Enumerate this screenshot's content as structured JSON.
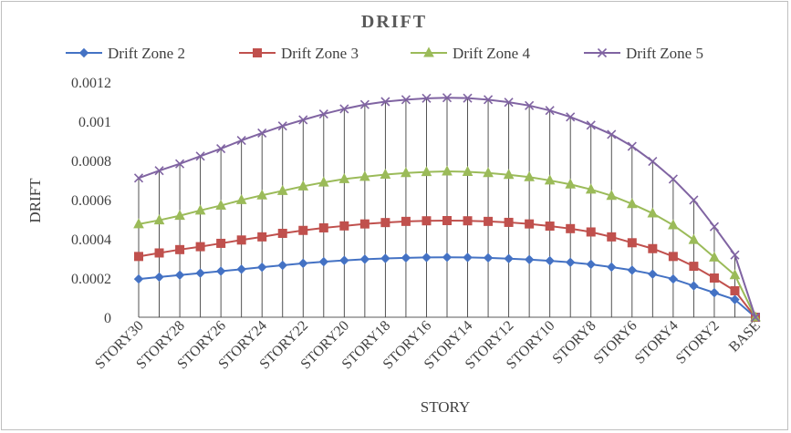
{
  "chart_data": {
    "type": "line",
    "title": "DRIFT",
    "xlabel": "STORY",
    "ylabel": "DRIFT",
    "ylim": [
      0,
      0.0012
    ],
    "yticks": [
      "0",
      "0.0002",
      "0.0004",
      "0.0006",
      "0.0008",
      "0.001",
      "0.0012"
    ],
    "grid": false,
    "drop_lines": true,
    "legend": "top",
    "categories": [
      "STORY30",
      "STORY29",
      "STORY28",
      "STORY27",
      "STORY26",
      "STORY25",
      "STORY24",
      "STORY23",
      "STORY22",
      "STORY21",
      "STORY20",
      "STORY19",
      "STORY18",
      "STORY17",
      "STORY16",
      "STORY15",
      "STORY14",
      "STORY13",
      "STORY12",
      "STORY11",
      "STORY10",
      "STORY9",
      "STORY8",
      "STORY7",
      "STORY6",
      "STORY5",
      "STORY4",
      "STORY3",
      "STORY2",
      "STORY1",
      "BASE"
    ],
    "visible_tick_labels": [
      "STORY30",
      "STORY28",
      "STORY26",
      "STORY24",
      "STORY22",
      "STORY20",
      "STORY18",
      "STORY16",
      "STORY14",
      "STORY12",
      "STORY10",
      "STORY8",
      "STORY6",
      "STORY4",
      "STORY2",
      "BASE"
    ],
    "series": [
      {
        "name": "Drift Zone 2",
        "color": "#4472c4",
        "marker": "diamond",
        "values": [
          0.000195,
          0.000205,
          0.000215,
          0.000225,
          0.000235,
          0.000245,
          0.000255,
          0.000265,
          0.000275,
          0.000283,
          0.00029,
          0.000296,
          0.0003,
          0.000303,
          0.000305,
          0.000306,
          0.000305,
          0.000303,
          0.000299,
          0.000294,
          0.000288,
          0.00028,
          0.00027,
          0.000256,
          0.00024,
          0.00022,
          0.000195,
          0.00016,
          0.000125,
          9e-05,
          0
        ]
      },
      {
        "name": "Drift Zone 3",
        "color": "#c0504d",
        "marker": "square",
        "values": [
          0.00031,
          0.000328,
          0.000345,
          0.00036,
          0.000377,
          0.000394,
          0.00041,
          0.000428,
          0.000443,
          0.000456,
          0.000466,
          0.000476,
          0.000483,
          0.000489,
          0.000492,
          0.000493,
          0.000492,
          0.000489,
          0.000484,
          0.000476,
          0.000465,
          0.000452,
          0.000435,
          0.00041,
          0.00038,
          0.00035,
          0.00031,
          0.00026,
          0.0002,
          0.000135,
          0
        ]
      },
      {
        "name": "Drift Zone 4",
        "color": "#9bbb59",
        "marker": "triangle",
        "values": [
          0.000475,
          0.000495,
          0.000518,
          0.000545,
          0.00057,
          0.000598,
          0.000622,
          0.000645,
          0.000668,
          0.000688,
          0.000705,
          0.000717,
          0.000728,
          0.000736,
          0.000741,
          0.000744,
          0.000742,
          0.000736,
          0.000727,
          0.000715,
          0.000698,
          0.000678,
          0.000652,
          0.00062,
          0.000578,
          0.00053,
          0.00047,
          0.000395,
          0.000305,
          0.000215,
          0
        ]
      },
      {
        "name": "Drift Zone 5",
        "color": "#8064a2",
        "marker": "x",
        "values": [
          0.00071,
          0.000748,
          0.000783,
          0.000822,
          0.00086,
          0.000902,
          0.00094,
          0.000976,
          0.001007,
          0.001037,
          0.001063,
          0.001085,
          0.0011,
          0.00111,
          0.001117,
          0.00112,
          0.001118,
          0.00111,
          0.001097,
          0.00108,
          0.001055,
          0.001022,
          0.00098,
          0.000933,
          0.000872,
          0.000795,
          0.000705,
          0.000598,
          0.000462,
          0.000318,
          0
        ]
      }
    ]
  }
}
